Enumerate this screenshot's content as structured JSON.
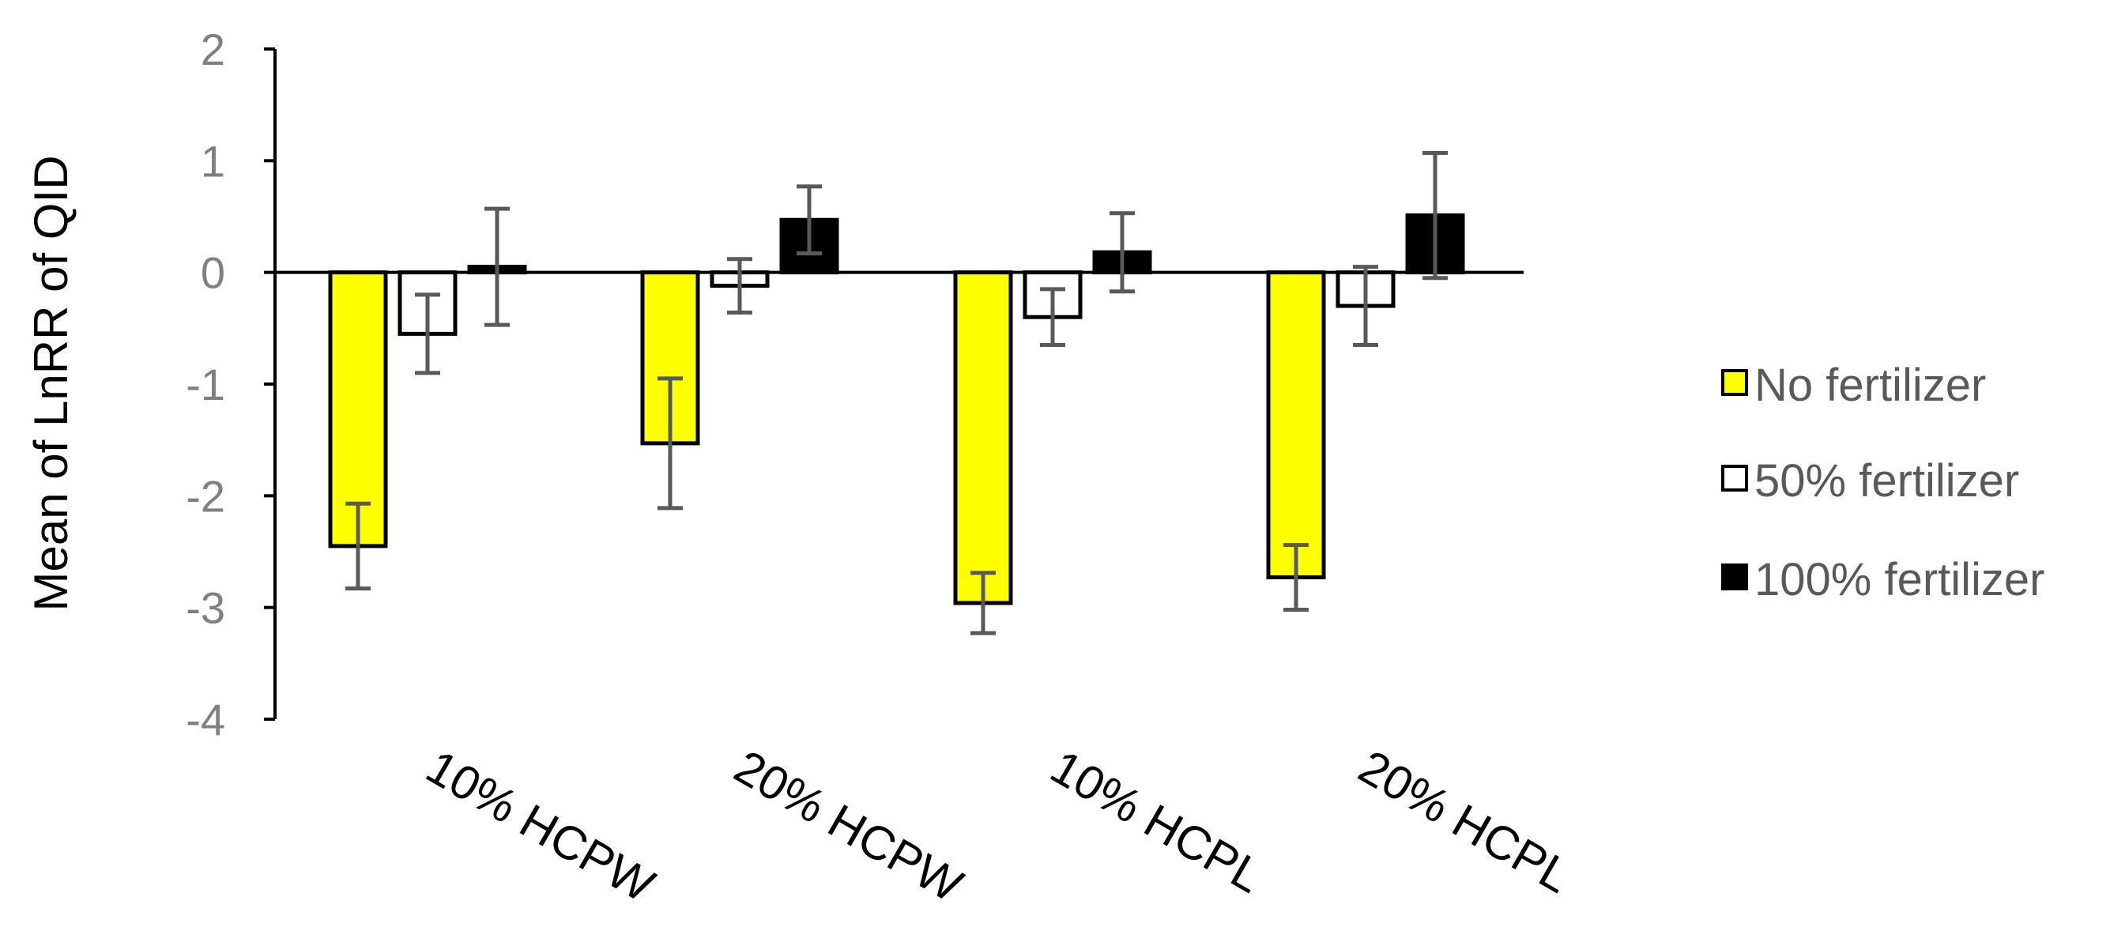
{
  "chart_data": {
    "type": "bar",
    "title": "",
    "xlabel": "",
    "ylabel": "Mean of LnRR of QID",
    "ylim": [
      -4,
      2
    ],
    "yticks": [
      2,
      1,
      0,
      -1,
      -2,
      -3,
      -4
    ],
    "grid": false,
    "legend_position": "right",
    "categories": [
      "10% HCPW",
      "20% HCPW",
      "10% HCPL",
      "20% HCPL"
    ],
    "series": [
      {
        "name": "No fertilizer",
        "color": "#ffff00",
        "values": [
          -2.45,
          -1.53,
          -2.96,
          -2.73
        ],
        "errors": [
          0.38,
          0.58,
          0.27,
          0.29
        ]
      },
      {
        "name": "50% fertilizer",
        "color": "#ffffff",
        "values": [
          -0.55,
          -0.12,
          -0.4,
          -0.3
        ],
        "errors": [
          0.35,
          0.24,
          0.25,
          0.35
        ]
      },
      {
        "name": "100% fertilizer",
        "color": "#000000",
        "values": [
          0.05,
          0.47,
          0.18,
          0.51
        ],
        "errors": [
          0.52,
          0.3,
          0.35,
          0.56
        ]
      }
    ]
  }
}
